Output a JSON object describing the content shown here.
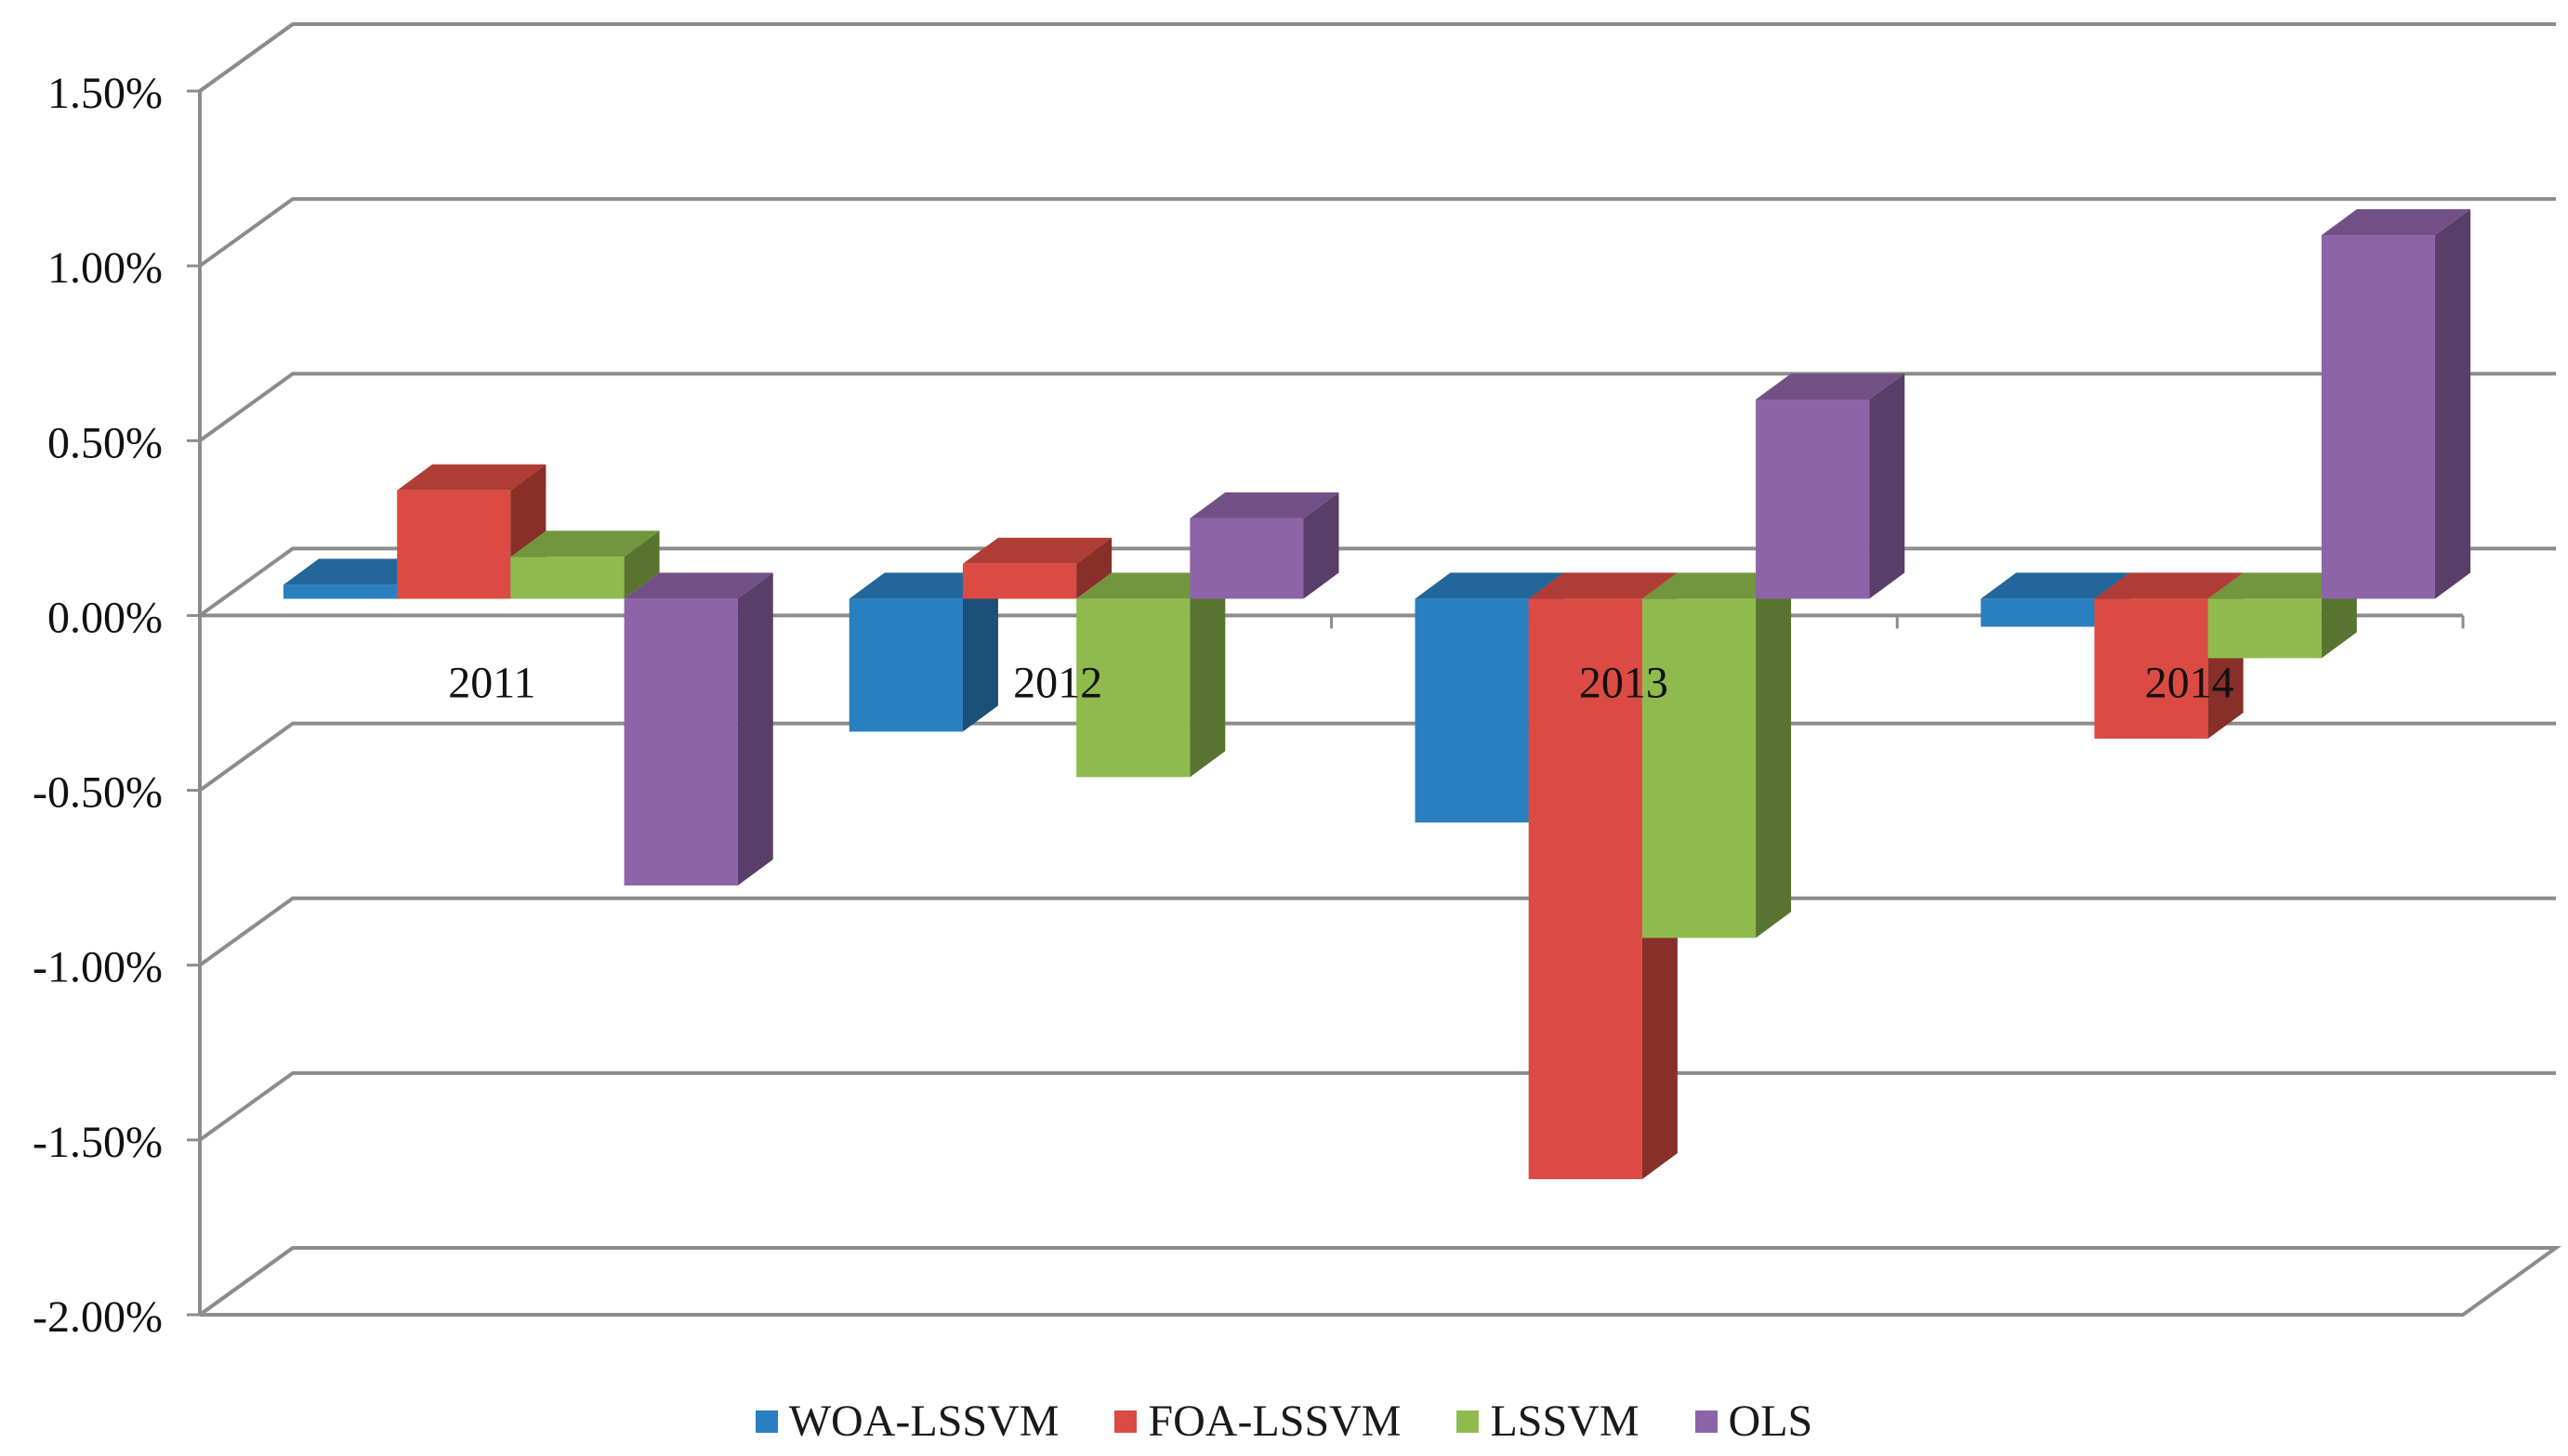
{
  "chart_data": {
    "type": "bar",
    "title": "",
    "xlabel": "",
    "ylabel": "",
    "categories": [
      "2011",
      "2012",
      "2013",
      "2014"
    ],
    "series": [
      {
        "name": "WOA-LSSVM",
        "color": "#2a7fc1",
        "values": [
          0.0004,
          -0.0038,
          -0.0064,
          -0.0008
        ]
      },
      {
        "name": "FOA-LSSVM",
        "color": "#dc4b43",
        "values": [
          0.0031,
          0.001,
          -0.0166,
          -0.004
        ]
      },
      {
        "name": "LSSVM",
        "color": "#8fbb4e",
        "values": [
          0.0012,
          -0.0051,
          -0.0097,
          -0.0017
        ]
      },
      {
        "name": "OLS",
        "color": "#8e64a8",
        "values": [
          -0.0082,
          0.0023,
          0.0057,
          0.0104
        ]
      }
    ],
    "ylim": [
      -0.02,
      0.015
    ],
    "ytick_values": [
      0.015,
      0.01,
      0.005,
      0,
      -0.005,
      -0.01,
      -0.015,
      -0.02
    ],
    "ytick_labels": [
      "1.50%",
      "1.00%",
      "0.50%",
      "0.00%",
      "-0.50%",
      "-1.00%",
      "-1.50%",
      "-2.00%"
    ],
    "grid": true,
    "legend_position": "bottom",
    "style": "3d-clustered-column"
  }
}
